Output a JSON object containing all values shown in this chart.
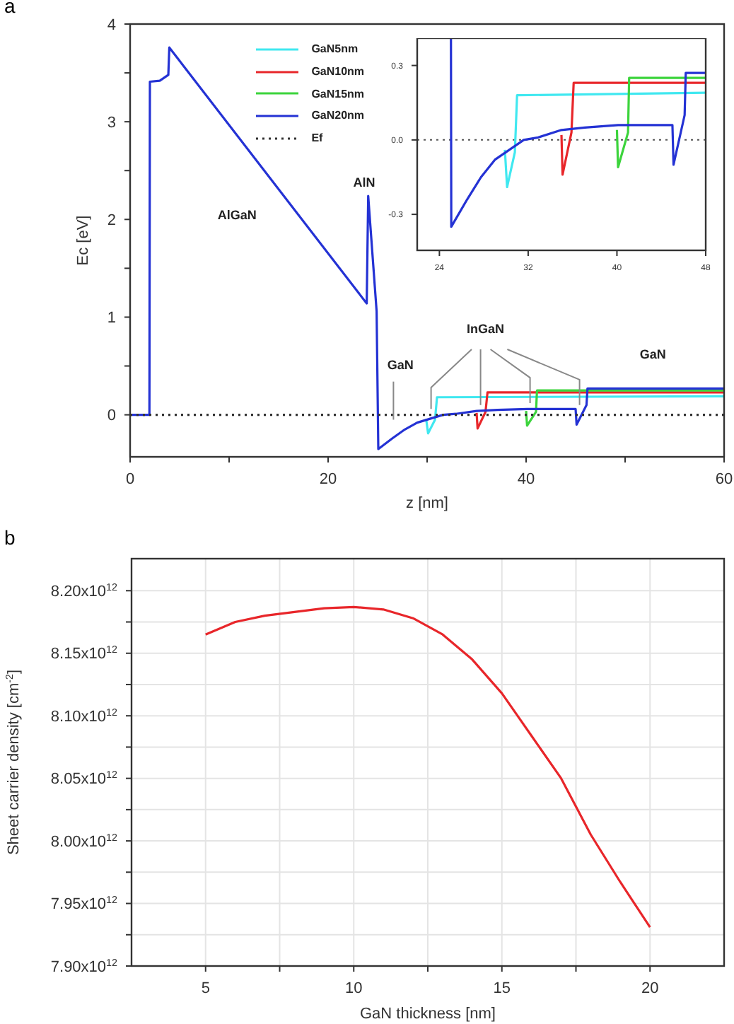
{
  "chart_data": [
    {
      "type": "line",
      "title": "a",
      "xlabel": "z [nm]",
      "ylabel": "Ec [eV]",
      "xlim": [
        0,
        60
      ],
      "xticks": [
        0,
        {
          "value": 10,
          "label": null
        },
        20,
        {
          "value": 30,
          "label": null
        },
        40,
        {
          "value": 50,
          "label": null
        },
        60
      ],
      "ylim": [
        -0.43,
        4
      ],
      "yticks": [
        0,
        {
          "value": 0.5,
          "label": null
        },
        1,
        {
          "value": 1.5,
          "label": null
        },
        2,
        {
          "value": 2.5,
          "label": null
        },
        3,
        {
          "value": 3.5,
          "label": null
        },
        4
      ],
      "legend": "top",
      "line_style": "solid",
      "annotations": [
        "AlGaN",
        "AlN",
        "GaN",
        {
          "text": "InGaN",
          "x": 35.4,
          "y": 0.1
        },
        "GaN"
      ],
      "series": [
        {
          "name": "GaN5nm",
          "color": "#40e8f0",
          "x": [
            29.9,
            30.1,
            30.8,
            31.0,
            60
          ],
          "values": [
            -0.04,
            -0.19,
            -0.05,
            0.18,
            0.19
          ]
        },
        {
          "name": "GaN10nm",
          "color": "#e8262a",
          "x": [
            35.0,
            35.1,
            35.9,
            36.1,
            60
          ],
          "values": [
            0.02,
            -0.14,
            0.03,
            0.23,
            0.23
          ]
        },
        {
          "name": "GaN15nm",
          "color": "#3cd43c",
          "x": [
            40.0,
            40.1,
            41.0,
            41.1,
            60
          ],
          "values": [
            0.04,
            -0.11,
            0.03,
            0.25,
            0.25
          ]
        },
        {
          "name": "GaN20nm",
          "color": "#2432d4",
          "x": [
            0,
            1.95,
            2.0,
            3.0,
            3.86,
            3.96,
            23.9,
            24.05,
            24.9,
            25.07,
            26.5,
            27.75,
            29.0,
            30.3,
            31.6,
            32.9,
            35.0,
            37.1,
            40.1,
            43.1,
            45.0,
            45.1,
            46.1,
            46.2,
            60
          ],
          "values": [
            0,
            0,
            3.41,
            3.42,
            3.48,
            3.76,
            1.14,
            2.24,
            1.06,
            -0.35,
            -0.24,
            -0.15,
            -0.08,
            -0.04,
            0,
            0.01,
            0.04,
            0.05,
            0.06,
            0.06,
            0.06,
            -0.1,
            0.1,
            0.27,
            0.27
          ]
        },
        {
          "name": "Ef",
          "color": "#333333",
          "line_style": "dotted",
          "x": [
            0,
            60
          ],
          "values": [
            0,
            0
          ]
        }
      ]
    },
    {
      "type": "line",
      "xlim": [
        22,
        48
      ],
      "xticks": [
        24,
        32,
        40,
        48
      ],
      "ylim": [
        -0.445,
        0.41
      ],
      "yticks": [
        {
          "value": -0.3,
          "label": "-0.3"
        },
        {
          "value": 0,
          "label": "0.0"
        },
        {
          "value": 0.3,
          "label": "0.3"
        }
      ],
      "line_style": "solid",
      "ref_lines": [
        {
          "axis": "y",
          "value": 0,
          "color": "#555555",
          "line_style": "dotted"
        }
      ],
      "series": [
        {
          "color": "#40e8f0",
          "x": [
            29.9,
            30.1,
            30.8,
            31.0,
            48
          ],
          "values": [
            -0.04,
            -0.19,
            -0.05,
            0.18,
            0.19
          ]
        },
        {
          "color": "#e8262a",
          "x": [
            35.0,
            35.1,
            35.9,
            36.1,
            48
          ],
          "values": [
            0.02,
            -0.14,
            0.03,
            0.23,
            0.23
          ]
        },
        {
          "color": "#3cd43c",
          "x": [
            40.0,
            40.1,
            41.0,
            41.1,
            48
          ],
          "values": [
            0.04,
            -0.11,
            0.03,
            0.25,
            0.25
          ]
        },
        {
          "color": "#2432d4",
          "x": [
            25.04,
            25.07,
            26.5,
            27.75,
            29.0,
            30.3,
            31.6,
            32.9,
            35.0,
            37.1,
            40.1,
            43.1,
            45.0,
            45.1,
            46.1,
            46.2,
            48
          ],
          "values": [
            0.41,
            -0.35,
            -0.24,
            -0.15,
            -0.08,
            -0.04,
            0,
            0.01,
            0.04,
            0.05,
            0.06,
            0.06,
            0.06,
            -0.1,
            0.1,
            0.27,
            0.27
          ]
        }
      ]
    },
    {
      "type": "line",
      "title": "b",
      "xlabel": "GaN thickness [nm]",
      "ylabel": "Sheet carrier density [cm$^{-2}$]",
      "xlim": [
        2.5,
        22.5
      ],
      "xticks": [
        5,
        {
          "value": 7.5,
          "label": null
        },
        10,
        {
          "value": 12.5,
          "label": null
        },
        15,
        {
          "value": 17.5,
          "label": null
        },
        20
      ],
      "ylim": [
        7900000000000.0,
        8225600000000.0
      ],
      "yticks": [
        {
          "value": 7900000000000.0,
          "label": "7.90x10$^{12}$"
        },
        {
          "value": 7925000000000.0,
          "label": null
        },
        {
          "value": 7950000000000.0,
          "label": "7.95x10$^{12}$"
        },
        {
          "value": 7975000000000.0,
          "label": null
        },
        {
          "value": 8000000000000.0,
          "label": "8.00x10$^{12}$"
        },
        {
          "value": 8025000000000.0,
          "label": null
        },
        {
          "value": 8050000000000.0,
          "label": "8.05x10$^{12}$"
        },
        {
          "value": 8075000000000.0,
          "label": null
        },
        {
          "value": 8100000000000.0,
          "label": "8.10x10$^{12}$"
        },
        {
          "value": 8125000000000.0,
          "label": null
        },
        {
          "value": 8150000000000.0,
          "label": "8.15x10$^{12}$"
        },
        {
          "value": 8175000000000.0,
          "label": null
        },
        {
          "value": 8200000000000.0,
          "label": "8.20x10$^{12}$"
        }
      ],
      "grid": true,
      "line_style": "solid",
      "series": [
        {
          "color": "#e8262a",
          "x": [
            5,
            6,
            7,
            8,
            9,
            10,
            11,
            12,
            13,
            14,
            15,
            16,
            17,
            18,
            19,
            20
          ],
          "values": [
            8165000000000.0,
            8175000000000.0,
            8180000000000.0,
            8183000000000.0,
            8186000000000.0,
            8187000000000.0,
            8185000000000.0,
            8178000000000.0,
            8165000000000.0,
            8145000000000.0,
            8118000000000.0,
            8084000000000.0,
            8050000000000.0,
            8005000000000.0,
            7967000000000.0,
            7931000000000.0
          ]
        }
      ]
    }
  ]
}
